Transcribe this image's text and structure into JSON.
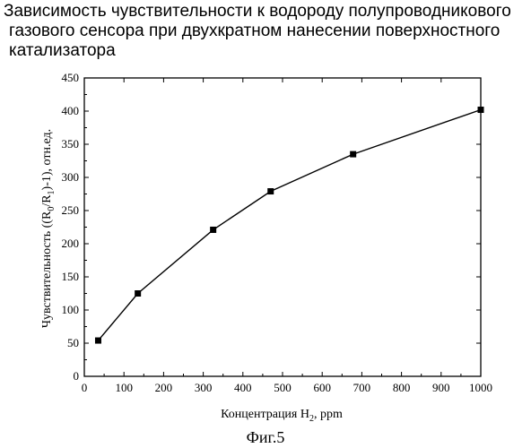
{
  "title_lines": [
    "Зависимость чувствительности к водороду полупроводникового",
    "газового сенсора при двухкратном нанесении поверхностного",
    "катализатора"
  ],
  "figure_caption": "Фиг.5",
  "chart_data": {
    "type": "line",
    "title": "Зависимость чувствительности к водороду полупроводникового газового сенсора при двухкратном нанесении поверхностного катализатора",
    "xlabel": "Концентрация H₂, ppm",
    "ylabel": "Чувствительность ((R₀/R₁)-1), отн.ед.",
    "xlim": [
      0,
      1000
    ],
    "ylim": [
      0,
      450
    ],
    "x_ticks": [
      0,
      100,
      200,
      300,
      400,
      500,
      600,
      700,
      800,
      900,
      1000
    ],
    "y_ticks": [
      0,
      50,
      100,
      150,
      200,
      250,
      300,
      350,
      400,
      450
    ],
    "grid": false,
    "marker": "square",
    "series": [
      {
        "x": [
          35,
          135,
          325,
          470,
          678,
          1000
        ],
        "y": [
          54,
          125,
          221,
          279,
          335,
          402
        ]
      }
    ]
  }
}
